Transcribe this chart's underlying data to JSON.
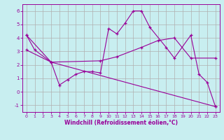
{
  "line1_x": [
    0,
    1,
    3,
    4,
    5,
    6,
    7,
    8,
    9,
    10,
    11,
    12,
    13,
    14,
    15,
    17,
    18,
    20,
    21,
    22,
    23
  ],
  "line1_y": [
    4.2,
    3.1,
    2.2,
    0.5,
    0.9,
    1.3,
    1.5,
    1.5,
    1.4,
    4.7,
    4.3,
    5.1,
    6.0,
    6.0,
    4.8,
    3.3,
    2.5,
    4.2,
    1.3,
    0.7,
    -1.1
  ],
  "line2_x": [
    0,
    3,
    9,
    11,
    14,
    16,
    18,
    20,
    23
  ],
  "line2_y": [
    3.1,
    2.2,
    2.3,
    2.6,
    3.3,
    3.8,
    4.0,
    2.5,
    2.5
  ],
  "line3_x": [
    0,
    3,
    23
  ],
  "line3_y": [
    4.2,
    2.2,
    -1.1
  ],
  "color": "#990099",
  "bg_color": "#c8eef0",
  "grid_color": "#b0b0b0",
  "xlabel": "Windchill (Refroidissement éolien,°C)",
  "xlabel_color": "#990099",
  "xlim": [
    -0.5,
    23.5
  ],
  "ylim": [
    -1.5,
    6.5
  ],
  "yticks": [
    -1,
    0,
    1,
    2,
    3,
    4,
    5,
    6
  ],
  "xticks": [
    0,
    1,
    2,
    3,
    4,
    5,
    6,
    7,
    8,
    9,
    10,
    11,
    12,
    13,
    14,
    15,
    16,
    17,
    18,
    19,
    20,
    21,
    22,
    23
  ]
}
